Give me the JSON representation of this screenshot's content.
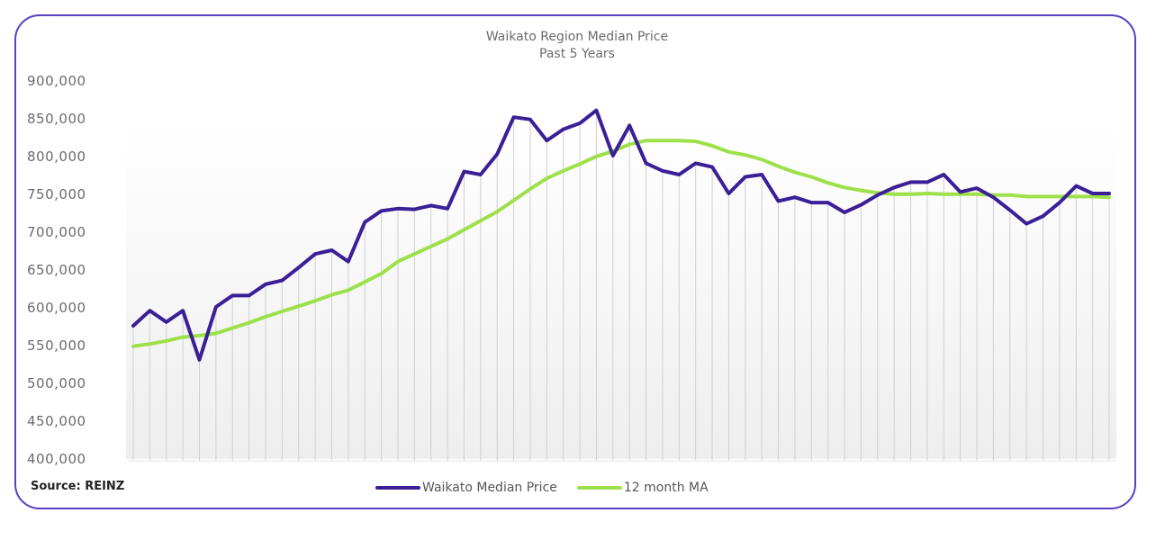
{
  "chart_data": {
    "type": "line",
    "title": "Waikato Region Median Price",
    "subtitle": "Past 5 Years",
    "source": "Source: REINZ",
    "xlabel": "",
    "ylabel": "",
    "ylim": [
      400000,
      900000
    ],
    "yticks": [
      "900,000",
      "850,000",
      "800,000",
      "750,000",
      "700,000",
      "650,000",
      "600,000",
      "550,000",
      "500,000",
      "450,000",
      "400,000"
    ],
    "ytick_values": [
      900000,
      850000,
      800000,
      750000,
      700000,
      650000,
      600000,
      550000,
      500000,
      450000,
      400000
    ],
    "grid": "vertical lines at each month",
    "legend_position": "bottom",
    "series": [
      {
        "name": "Waikato Median Price",
        "color": "#3a1f96",
        "values": [
          575000,
          595000,
          580000,
          595000,
          530000,
          600000,
          615000,
          615000,
          630000,
          635000,
          652000,
          670000,
          675000,
          660000,
          712000,
          727000,
          730000,
          729000,
          734000,
          730000,
          779000,
          775000,
          802000,
          851000,
          848000,
          820000,
          835000,
          843000,
          860000,
          800000,
          840000,
          790000,
          780000,
          775000,
          790000,
          785000,
          750000,
          772000,
          775000,
          740000,
          745000,
          738000,
          738000,
          725000,
          735000,
          748000,
          758000,
          765000,
          765000,
          775000,
          752000,
          757000,
          745000,
          728000,
          710000,
          720000,
          738000,
          760000,
          750000,
          750000
        ]
      },
      {
        "name": "12 month MA",
        "color": "#9ee04a",
        "values": [
          548000,
          551000,
          555000,
          560000,
          562000,
          565000,
          572000,
          579000,
          587000,
          594000,
          601000,
          608000,
          616000,
          622000,
          633000,
          644000,
          660000,
          670000,
          680000,
          690000,
          702000,
          714000,
          726000,
          741000,
          756000,
          770000,
          780000,
          789000,
          799000,
          806000,
          815000,
          820000,
          820000,
          820000,
          819000,
          813000,
          805000,
          801000,
          795000,
          786000,
          778000,
          772000,
          764000,
          758000,
          754000,
          751000,
          749000,
          749000,
          750000,
          749000,
          749000,
          749000,
          748000,
          748000,
          746000,
          746000,
          746000,
          746000,
          746000,
          745000
        ]
      }
    ]
  }
}
